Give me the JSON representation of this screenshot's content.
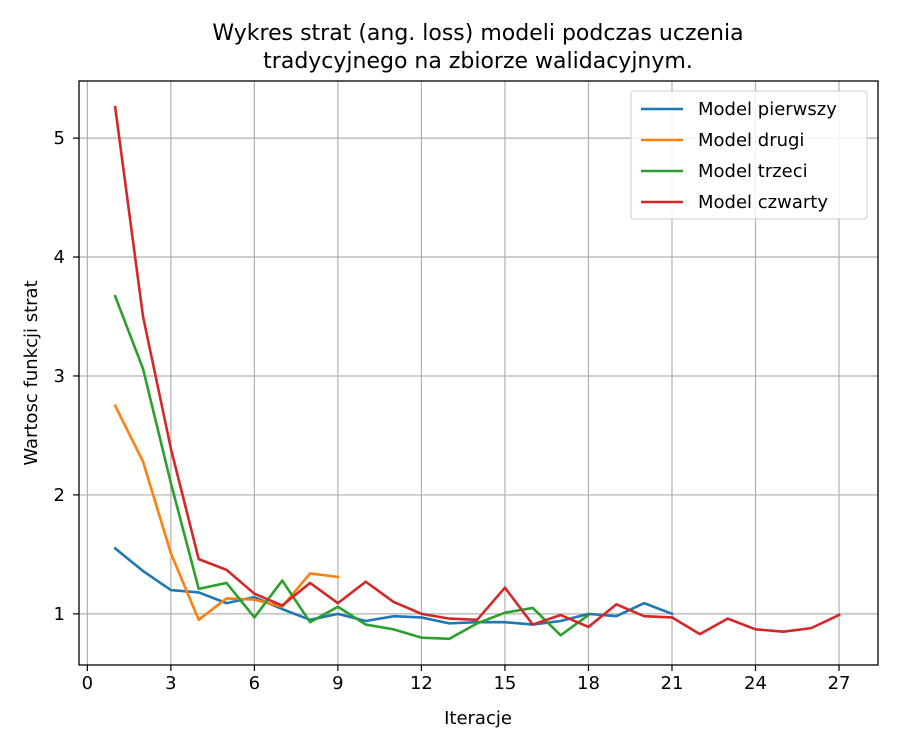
{
  "chart_data": {
    "type": "line",
    "title_lines": [
      "Wykres strat (ang. loss) modeli podczas uczenia",
      "tradycyjnego na zbiorze walidacyjnym."
    ],
    "xlabel": "Iteracje",
    "ylabel": "Wartosc funkcji strat",
    "xlim": [
      -0.3,
      28.4
    ],
    "ylim": [
      0.57,
      5.48
    ],
    "xticks": [
      0,
      3,
      6,
      9,
      12,
      15,
      18,
      21,
      24,
      27
    ],
    "yticks": [
      1,
      2,
      3,
      4,
      5
    ],
    "grid": true,
    "legend_position": "upper right",
    "series": [
      {
        "name": "Model pierwszy",
        "color": "#1f77b4",
        "x": [
          1,
          2,
          3,
          4,
          5,
          6,
          7,
          8,
          9,
          10,
          11,
          12,
          13,
          14,
          15,
          16,
          17,
          18,
          19,
          20,
          21
        ],
        "values": [
          1.55,
          1.36,
          1.2,
          1.18,
          1.09,
          1.14,
          1.04,
          0.95,
          1.0,
          0.94,
          0.98,
          0.97,
          0.92,
          0.93,
          0.93,
          0.91,
          0.94,
          1.0,
          0.98,
          1.09,
          1.0
        ]
      },
      {
        "name": "Model drugi",
        "color": "#ff7f0e",
        "x": [
          1,
          2,
          3,
          4,
          5,
          6,
          7,
          8,
          9
        ],
        "values": [
          2.75,
          2.28,
          1.51,
          0.95,
          1.13,
          1.12,
          1.06,
          1.34,
          1.31
        ]
      },
      {
        "name": "Model trzeci",
        "color": "#2ca02c",
        "x": [
          1,
          2,
          3,
          4,
          5,
          6,
          7,
          8,
          9,
          10,
          11,
          12,
          13,
          14,
          15,
          16,
          17,
          18
        ],
        "values": [
          3.67,
          3.06,
          2.1,
          1.21,
          1.26,
          0.97,
          1.28,
          0.93,
          1.06,
          0.91,
          0.87,
          0.8,
          0.79,
          0.92,
          1.01,
          1.05,
          0.82,
          0.99
        ]
      },
      {
        "name": "Model czwarty",
        "color": "#d62728",
        "x": [
          1,
          2,
          3,
          4,
          5,
          6,
          7,
          8,
          9,
          10,
          11,
          12,
          13,
          14,
          15,
          16,
          17,
          18,
          19,
          20,
          21,
          22,
          23,
          24,
          25,
          26,
          27
        ],
        "values": [
          5.26,
          3.5,
          2.39,
          1.46,
          1.37,
          1.17,
          1.07,
          1.26,
          1.09,
          1.27,
          1.1,
          1.0,
          0.96,
          0.95,
          1.22,
          0.91,
          0.99,
          0.89,
          1.08,
          0.98,
          0.97,
          0.83,
          0.96,
          0.87,
          0.85,
          0.88,
          0.99
        ]
      }
    ]
  }
}
